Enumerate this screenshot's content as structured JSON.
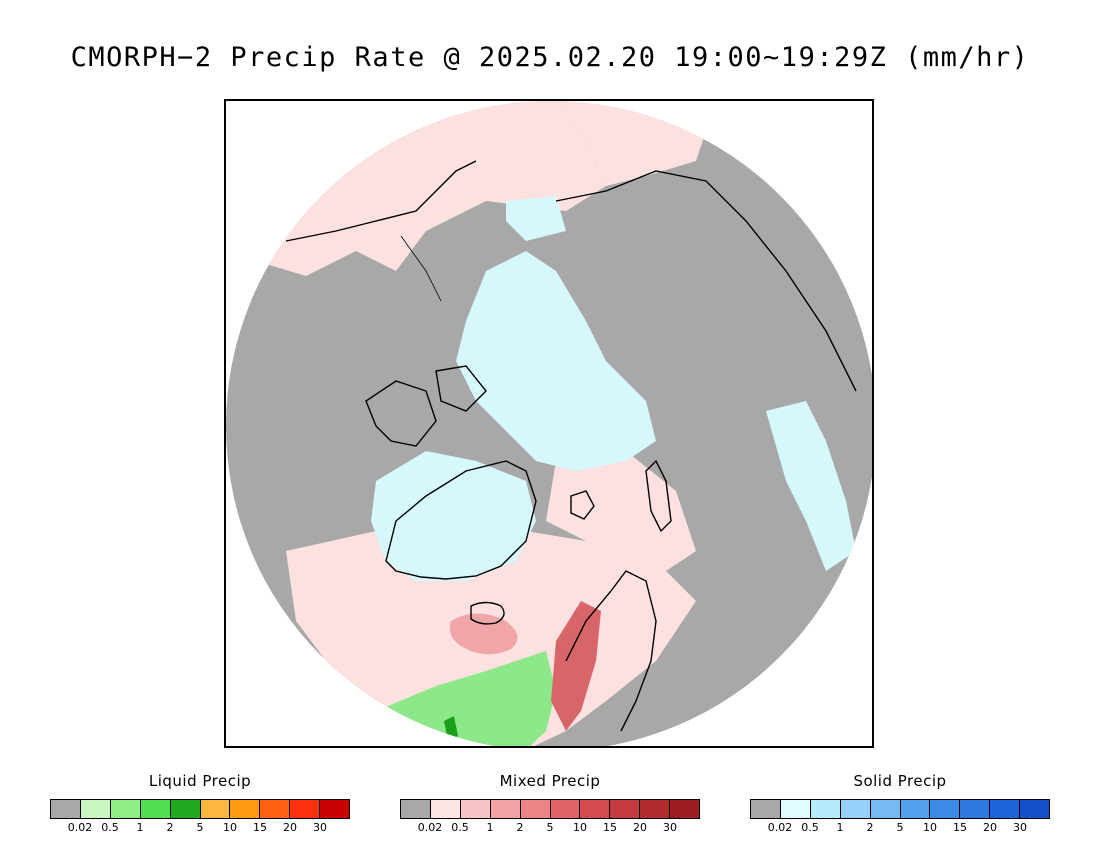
{
  "title": "CMORPH−2 Precip Rate @ 2025.02.20 19:00~19:29Z (mm/hr)",
  "map": {
    "projection": "north polar stereographic",
    "colors": {
      "background_gray": "#a8a8a8",
      "mixed_light": "#fde0e0",
      "solid_light": "#d6f8fc",
      "liquid_light": "#b5f5b0",
      "liquid_mid": "#8ce888",
      "liquid_dark": "#1aa01a",
      "mixed_mid": "#f0a5a8",
      "mixed_dark": "#d8656a",
      "coastline": "#000000"
    }
  },
  "legends": [
    {
      "title": "Liquid Precip",
      "colors": [
        "#a8a8a8",
        "#c8f8c0",
        "#90ee88",
        "#50e050",
        "#20aa20",
        "#fdb840",
        "#fd9a10",
        "#fd6010",
        "#fd3010",
        "#c80000"
      ],
      "ticks": [
        "0.02",
        "0.5",
        "1",
        "2",
        "5",
        "10",
        "15",
        "20",
        "30"
      ]
    },
    {
      "title": "Mixed Precip",
      "colors": [
        "#a8a8a8",
        "#fde4e4",
        "#fac4c6",
        "#f4a2a6",
        "#ec8486",
        "#e06468",
        "#d44c50",
        "#c43c40",
        "#b02a2e",
        "#9c1e22"
      ],
      "ticks": [
        "0.02",
        "0.5",
        "1",
        "2",
        "5",
        "10",
        "15",
        "20",
        "30"
      ]
    },
    {
      "title": "Solid Precip",
      "colors": [
        "#a8a8a8",
        "#e0fcfe",
        "#b4ecfa",
        "#94d0f8",
        "#78b8f4",
        "#54a0f0",
        "#3c8ae8",
        "#2c78e0",
        "#1e64d8",
        "#1450c8"
      ],
      "ticks": [
        "0.02",
        "0.5",
        "1",
        "2",
        "5",
        "10",
        "15",
        "20",
        "30"
      ]
    }
  ]
}
